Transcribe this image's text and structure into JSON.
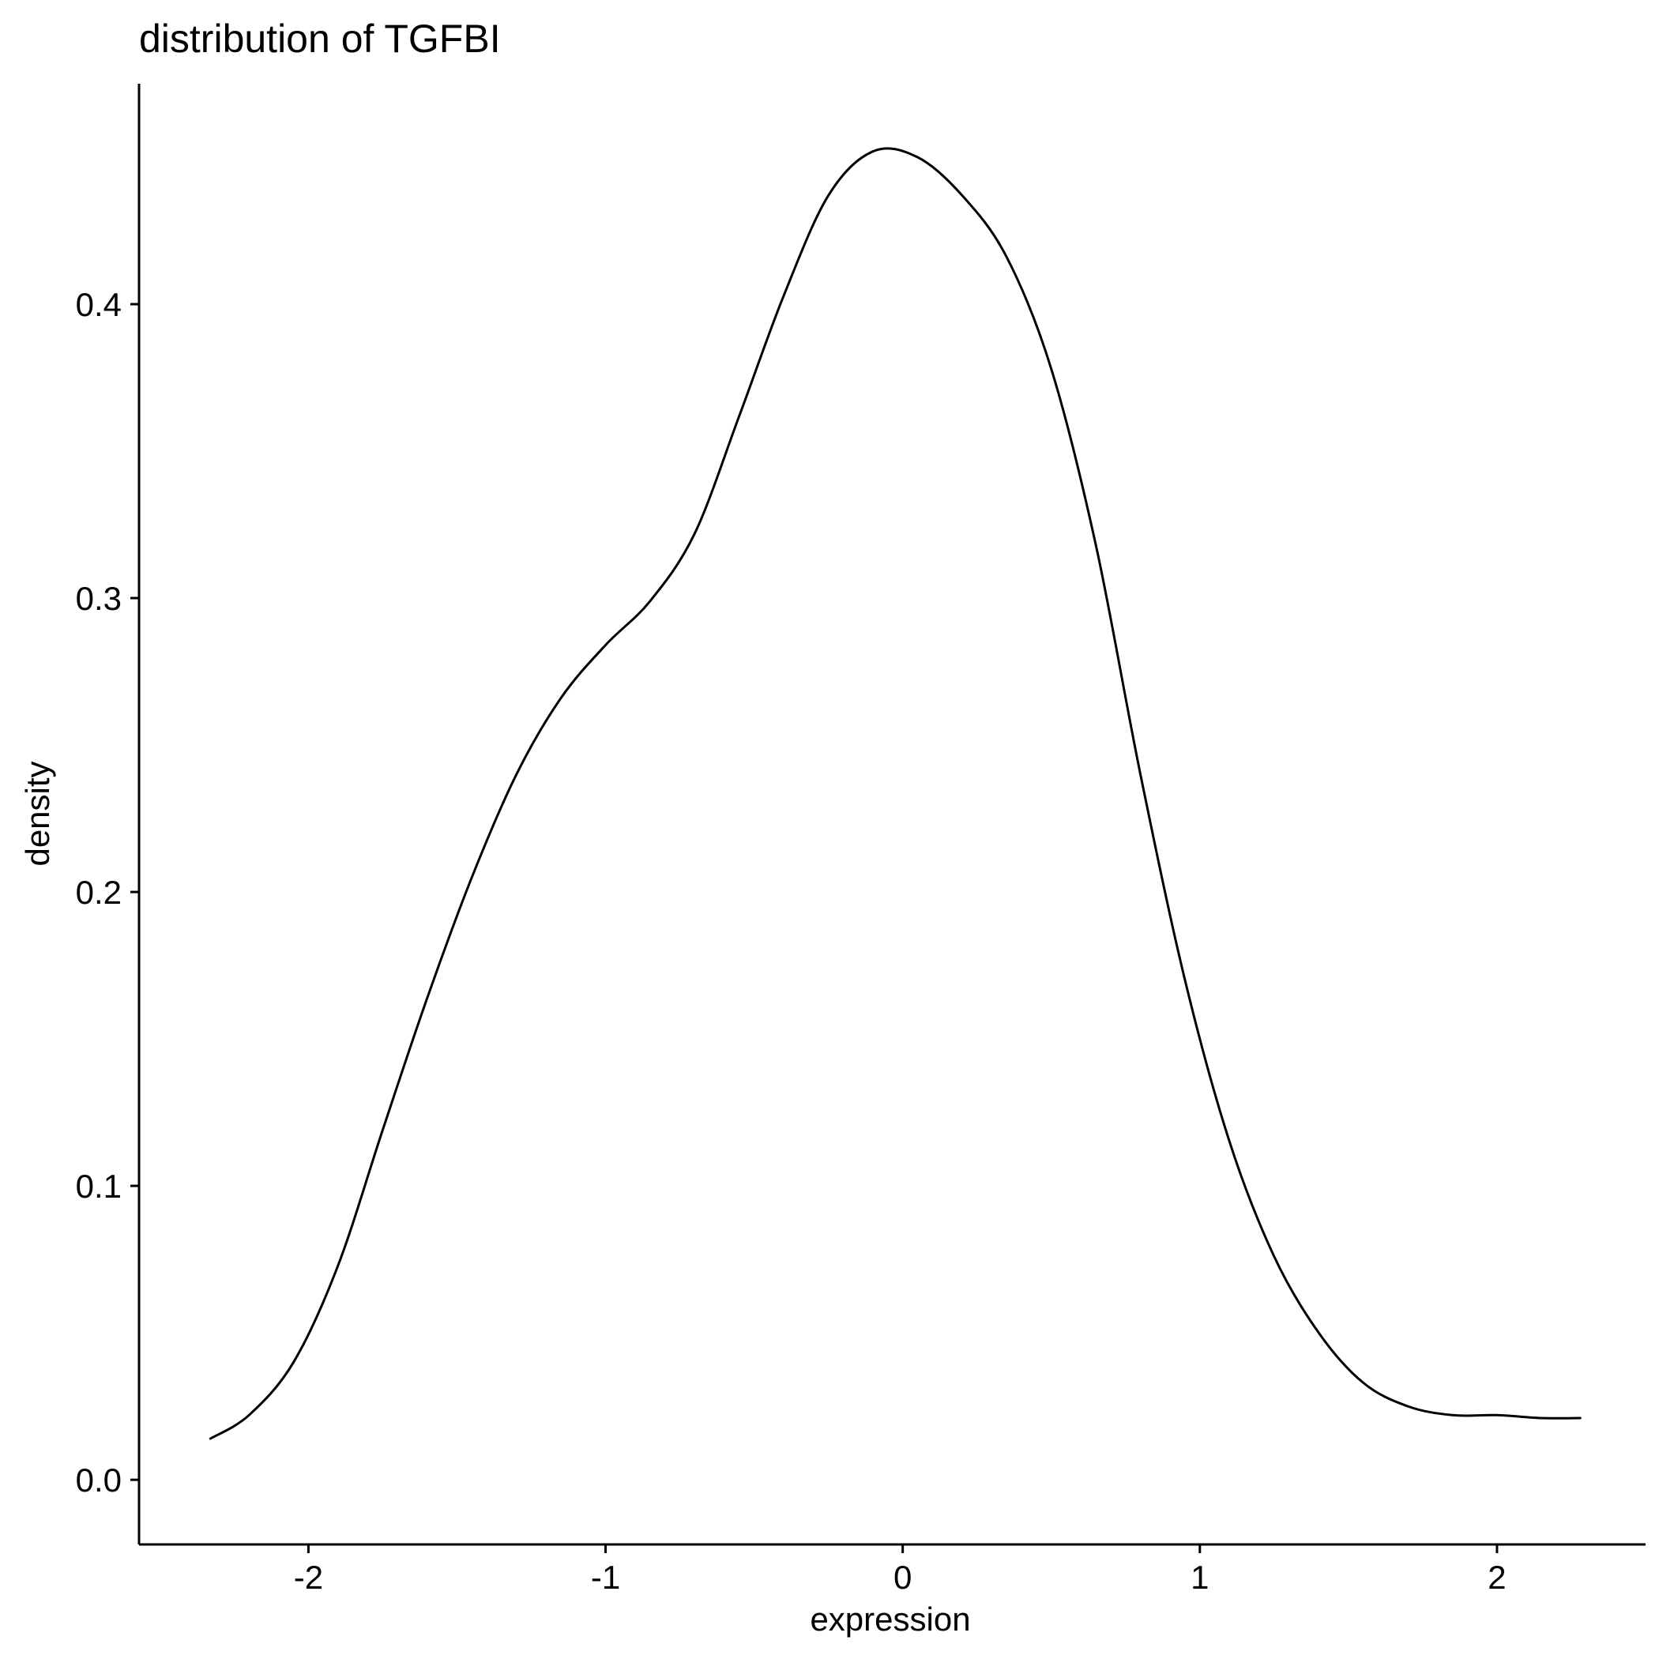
{
  "chart_data": {
    "type": "line",
    "title": "distribution of TGFBI",
    "xlabel": "expression",
    "ylabel": "density",
    "xlim": [
      -2.57,
      2.5
    ],
    "ylim": [
      -0.022,
      0.475
    ],
    "x_ticks": [
      -2,
      -1,
      0,
      1,
      2
    ],
    "x_tick_labels": [
      "-2",
      "-1",
      "0",
      "1",
      "2"
    ],
    "y_ticks": [
      0.0,
      0.1,
      0.2,
      0.3,
      0.4
    ],
    "y_tick_labels": [
      "0.0",
      "0.1",
      "0.2",
      "0.3",
      "0.4"
    ],
    "grid": false,
    "legend": "none",
    "line_color": "#000000",
    "series": [
      {
        "x": [
          -2.33,
          -2.2,
          -2.05,
          -1.9,
          -1.75,
          -1.6,
          -1.45,
          -1.3,
          -1.15,
          -1.0,
          -0.85,
          -0.7,
          -0.55,
          -0.4,
          -0.25,
          -0.1,
          0.05,
          0.2,
          0.35,
          0.5,
          0.65,
          0.8,
          0.95,
          1.1,
          1.25,
          1.4,
          1.55,
          1.7,
          1.85,
          2.0,
          2.15,
          2.28
        ],
        "y": [
          0.014,
          0.022,
          0.04,
          0.073,
          0.119,
          0.164,
          0.205,
          0.24,
          0.266,
          0.284,
          0.299,
          0.322,
          0.362,
          0.403,
          0.437,
          0.452,
          0.45,
          0.437,
          0.416,
          0.378,
          0.318,
          0.24,
          0.17,
          0.115,
          0.076,
          0.05,
          0.033,
          0.025,
          0.022,
          0.022,
          0.021,
          0.021
        ]
      }
    ]
  }
}
